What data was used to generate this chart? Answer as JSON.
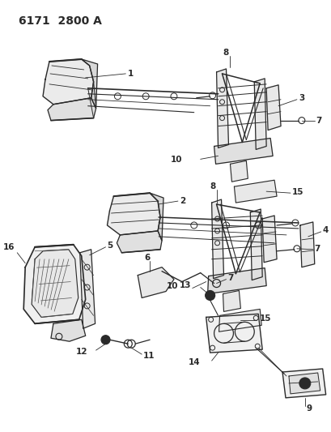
{
  "title": "6171  2800 A",
  "bg_color": "#ffffff",
  "line_color": "#2a2a2a",
  "title_fontsize": 10,
  "fig_width": 4.1,
  "fig_height": 5.33,
  "dpi": 100
}
